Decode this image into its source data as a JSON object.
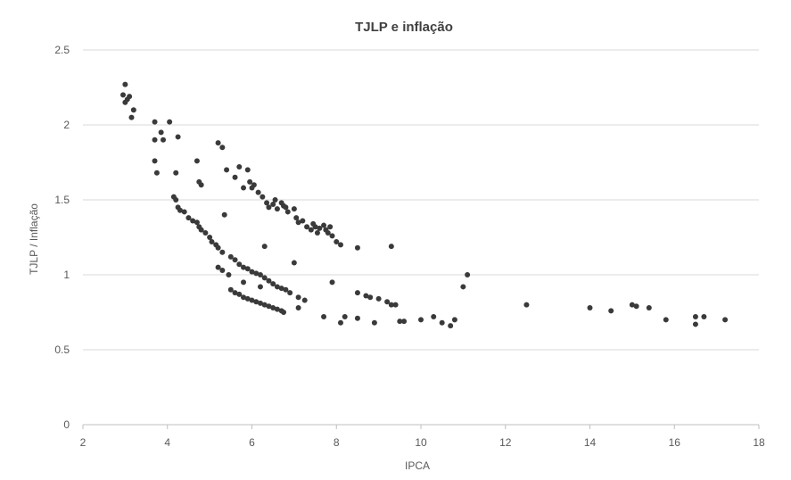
{
  "chart_data": {
    "type": "scatter",
    "title": "TJLP e inflação",
    "xlabel": "IPCA",
    "ylabel": "TJLP / Inflação",
    "xlim": [
      2,
      18
    ],
    "ylim": [
      0,
      2.5
    ],
    "xticks": [
      2,
      4,
      6,
      8,
      10,
      12,
      14,
      16,
      18
    ],
    "yticks": [
      0,
      0.5,
      1,
      1.5,
      2,
      2.5
    ],
    "ytick_labels": [
      "0",
      "0.5",
      "1",
      "1.5",
      "2",
      "2.5"
    ],
    "grid": "horizontal",
    "legend": "none",
    "marker_color": "#3a3a3a",
    "points": [
      [
        3.0,
        2.27
      ],
      [
        2.95,
        2.2
      ],
      [
        3.05,
        2.17
      ],
      [
        3.1,
        2.19
      ],
      [
        3.15,
        2.05
      ],
      [
        3.2,
        2.1
      ],
      [
        3.0,
        2.15
      ],
      [
        3.7,
        2.02
      ],
      [
        3.85,
        1.95
      ],
      [
        4.05,
        2.02
      ],
      [
        3.7,
        1.9
      ],
      [
        3.9,
        1.9
      ],
      [
        4.25,
        1.92
      ],
      [
        3.7,
        1.76
      ],
      [
        3.75,
        1.68
      ],
      [
        4.2,
        1.68
      ],
      [
        4.7,
        1.76
      ],
      [
        4.8,
        1.6
      ],
      [
        4.75,
        1.62
      ],
      [
        5.2,
        1.88
      ],
      [
        5.3,
        1.85
      ],
      [
        5.4,
        1.7
      ],
      [
        5.6,
        1.65
      ],
      [
        5.7,
        1.72
      ],
      [
        5.9,
        1.7
      ],
      [
        5.8,
        1.58
      ],
      [
        6.0,
        1.58
      ],
      [
        5.95,
        1.62
      ],
      [
        6.05,
        1.6
      ],
      [
        6.15,
        1.55
      ],
      [
        6.25,
        1.52
      ],
      [
        6.35,
        1.48
      ],
      [
        6.4,
        1.45
      ],
      [
        6.5,
        1.47
      ],
      [
        6.55,
        1.5
      ],
      [
        6.6,
        1.44
      ],
      [
        6.7,
        1.48
      ],
      [
        6.75,
        1.46
      ],
      [
        6.8,
        1.45
      ],
      [
        6.85,
        1.42
      ],
      [
        7.0,
        1.44
      ],
      [
        7.05,
        1.38
      ],
      [
        7.1,
        1.35
      ],
      [
        7.2,
        1.36
      ],
      [
        7.3,
        1.32
      ],
      [
        7.4,
        1.3
      ],
      [
        7.45,
        1.34
      ],
      [
        7.5,
        1.32
      ],
      [
        7.55,
        1.28
      ],
      [
        7.6,
        1.31
      ],
      [
        7.7,
        1.33
      ],
      [
        7.75,
        1.3
      ],
      [
        7.8,
        1.28
      ],
      [
        7.85,
        1.32
      ],
      [
        7.9,
        1.26
      ],
      [
        8.0,
        1.22
      ],
      [
        8.1,
        1.2
      ],
      [
        8.5,
        1.18
      ],
      [
        9.3,
        1.19
      ],
      [
        5.35,
        1.4
      ],
      [
        6.3,
        1.19
      ],
      [
        7.0,
        1.08
      ],
      [
        4.15,
        1.52
      ],
      [
        4.2,
        1.5
      ],
      [
        4.25,
        1.45
      ],
      [
        4.3,
        1.43
      ],
      [
        4.4,
        1.42
      ],
      [
        4.5,
        1.38
      ],
      [
        4.6,
        1.36
      ],
      [
        4.7,
        1.35
      ],
      [
        4.75,
        1.32
      ],
      [
        4.8,
        1.3
      ],
      [
        4.9,
        1.28
      ],
      [
        5.0,
        1.25
      ],
      [
        5.05,
        1.22
      ],
      [
        5.15,
        1.2
      ],
      [
        5.2,
        1.18
      ],
      [
        5.3,
        1.15
      ],
      [
        5.5,
        1.12
      ],
      [
        5.6,
        1.1
      ],
      [
        5.7,
        1.07
      ],
      [
        5.8,
        1.05
      ],
      [
        5.9,
        1.04
      ],
      [
        6.0,
        1.02
      ],
      [
        6.1,
        1.01
      ],
      [
        6.2,
        1.0
      ],
      [
        6.3,
        0.98
      ],
      [
        6.4,
        0.96
      ],
      [
        6.5,
        0.94
      ],
      [
        6.6,
        0.92
      ],
      [
        6.7,
        0.91
      ],
      [
        6.8,
        0.9
      ],
      [
        6.9,
        0.88
      ],
      [
        7.1,
        0.85
      ],
      [
        7.25,
        0.83
      ],
      [
        7.9,
        0.95
      ],
      [
        8.5,
        0.88
      ],
      [
        8.7,
        0.86
      ],
      [
        8.8,
        0.85
      ],
      [
        9.0,
        0.84
      ],
      [
        9.2,
        0.82
      ],
      [
        9.3,
        0.8
      ],
      [
        9.4,
        0.8
      ],
      [
        5.2,
        1.05
      ],
      [
        5.3,
        1.03
      ],
      [
        5.45,
        1.0
      ],
      [
        5.8,
        0.95
      ],
      [
        6.2,
        0.92
      ],
      [
        5.5,
        0.9
      ],
      [
        5.6,
        0.88
      ],
      [
        5.7,
        0.87
      ],
      [
        5.8,
        0.85
      ],
      [
        5.9,
        0.84
      ],
      [
        6.0,
        0.83
      ],
      [
        6.1,
        0.82
      ],
      [
        6.2,
        0.81
      ],
      [
        6.3,
        0.8
      ],
      [
        6.4,
        0.79
      ],
      [
        6.5,
        0.78
      ],
      [
        6.6,
        0.77
      ],
      [
        6.7,
        0.76
      ],
      [
        6.75,
        0.75
      ],
      [
        7.1,
        0.78
      ],
      [
        7.7,
        0.72
      ],
      [
        8.1,
        0.68
      ],
      [
        8.2,
        0.72
      ],
      [
        8.5,
        0.71
      ],
      [
        8.9,
        0.68
      ],
      [
        9.5,
        0.69
      ],
      [
        9.6,
        0.69
      ],
      [
        10.0,
        0.7
      ],
      [
        10.3,
        0.72
      ],
      [
        10.5,
        0.68
      ],
      [
        10.7,
        0.66
      ],
      [
        10.8,
        0.7
      ],
      [
        11.0,
        0.92
      ],
      [
        11.1,
        1.0
      ],
      [
        12.5,
        0.8
      ],
      [
        14.0,
        0.78
      ],
      [
        14.5,
        0.76
      ],
      [
        15.0,
        0.8
      ],
      [
        15.1,
        0.79
      ],
      [
        15.4,
        0.78
      ],
      [
        15.8,
        0.7
      ],
      [
        16.5,
        0.72
      ],
      [
        16.5,
        0.67
      ],
      [
        16.7,
        0.72
      ],
      [
        17.2,
        0.7
      ]
    ]
  }
}
